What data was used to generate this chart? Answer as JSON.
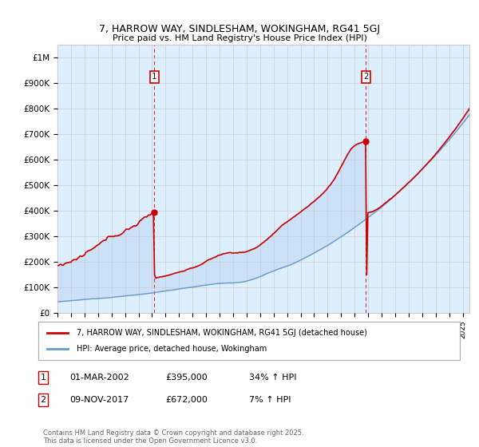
{
  "title": "7, HARROW WAY, SINDLESHAM, WOKINGHAM, RG41 5GJ",
  "subtitle": "Price paid vs. HM Land Registry's House Price Index (HPI)",
  "ylim": [
    0,
    1050000
  ],
  "yticks": [
    0,
    100000,
    200000,
    300000,
    400000,
    500000,
    600000,
    700000,
    800000,
    900000,
    1000000
  ],
  "ytick_labels": [
    "£0",
    "£100K",
    "£200K",
    "£300K",
    "£400K",
    "£500K",
    "£600K",
    "£700K",
    "£800K",
    "£900K",
    "£1M"
  ],
  "red_color": "#cc0000",
  "blue_color": "#6699cc",
  "fill_color": "#ddeeff",
  "vline_color": "#cc0000",
  "legend_label_red": "7, HARROW WAY, SINDLESHAM, WOKINGHAM, RG41 5GJ (detached house)",
  "legend_label_blue": "HPI: Average price, detached house, Wokingham",
  "sale1_year": 2002.17,
  "sale1_price": 395000,
  "sale2_year": 2017.84,
  "sale2_price": 672000,
  "footnote1_num": "1",
  "footnote1_date": "01-MAR-2002",
  "footnote1_price": "£395,000",
  "footnote1_hpi": "34% ↑ HPI",
  "footnote2_num": "2",
  "footnote2_date": "09-NOV-2017",
  "footnote2_price": "£672,000",
  "footnote2_hpi": "7% ↑ HPI",
  "copyright_text": "Contains HM Land Registry data © Crown copyright and database right 2025.\nThis data is licensed under the Open Government Licence v3.0.",
  "background_color": "#ffffff",
  "grid_color": "#cccccc",
  "xstart": 1995,
  "xend": 2025.5
}
